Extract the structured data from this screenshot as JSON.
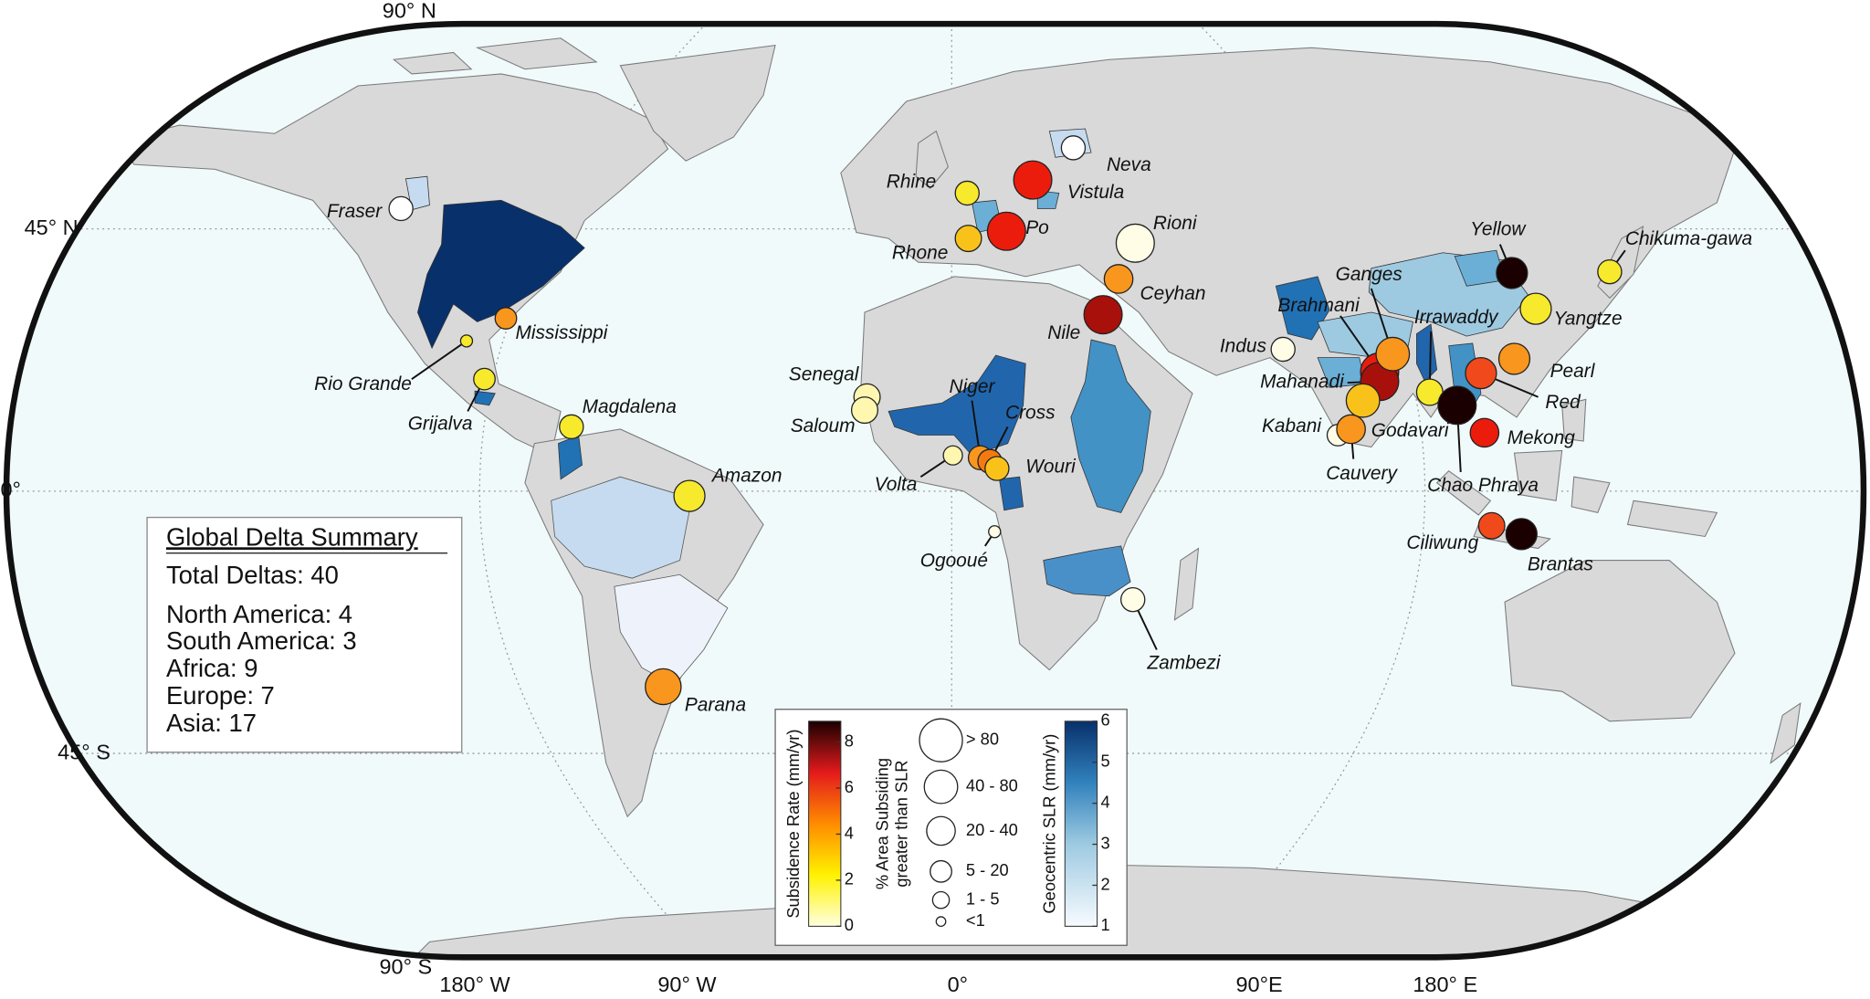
{
  "map": {
    "latitude_labels": [
      "90° N",
      "45° N",
      "0°",
      "45° S",
      "90° S"
    ],
    "longitude_labels": [
      "180° W",
      "90° W",
      "0°",
      "90°E",
      "180° E"
    ],
    "deltas": [
      "Fraser",
      "Mississippi",
      "Rio Grande",
      "Grijalva",
      "Magdalena",
      "Amazon",
      "Parana",
      "Senegal",
      "Saloum",
      "Niger",
      "Volta",
      "Cross",
      "Wouri",
      "Ogooué",
      "Nile",
      "Zambezi",
      "Rhine",
      "Rhone",
      "Po",
      "Vistula",
      "Neva",
      "Rioni",
      "Ceyhan",
      "Indus",
      "Brahmani",
      "Mahanadi",
      "Ganges",
      "Godavari",
      "Kabani",
      "Cauvery",
      "Irrawaddy",
      "Chao Phraya",
      "Mekong",
      "Red",
      "Pearl",
      "Yangtze",
      "Yellow",
      "Chikuma-gawa",
      "Ciliwung",
      "Brantas"
    ],
    "summary": {
      "title": "Global Delta Summary",
      "total": "Total Deltas: 40",
      "regions": [
        "North America: 4",
        "South America: 3",
        "Africa: 9",
        "Europe: 7",
        "Asia: 17"
      ]
    },
    "legend": {
      "subsidence": {
        "label": "Subsidence Rate (mm/yr)",
        "lim": [
          0,
          8.9
        ],
        "ticks": [
          0,
          2,
          4,
          6,
          8
        ]
      },
      "area": {
        "label": [
          "% Area Subsiding",
          "greater than SLR"
        ],
        "classes": [
          "> 80",
          "40 - 80",
          "20 - 40",
          "5 - 20",
          "1 - 5",
          "<1"
        ]
      },
      "slr": {
        "label": "Geocentric SLR (mm/yr)",
        "lim": [
          1,
          6
        ],
        "ticks": [
          1,
          2,
          3,
          4,
          5,
          6
        ]
      }
    }
  }
}
